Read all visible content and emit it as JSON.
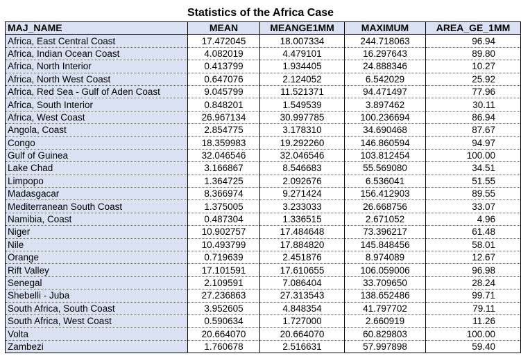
{
  "title": "Statistics of the Africa Case",
  "columns": [
    "MAJ_NAME",
    "MEAN",
    "MEANGE1MM",
    "MAXIMUM",
    "AREA_GE_1MM"
  ],
  "rows": [
    [
      "Africa, East Central Coast",
      "17.472045",
      "18.007334",
      "244.718063",
      "96.94"
    ],
    [
      "Africa, Indian Ocean Coast",
      "4.082019",
      "4.479101",
      "16.297643",
      "89.80"
    ],
    [
      "Africa, North Interior",
      "0.413799",
      "1.934405",
      "24.888346",
      "10.27"
    ],
    [
      "Africa, North West Coast",
      "0.647076",
      "2.124052",
      "6.542029",
      "25.92"
    ],
    [
      "Africa, Red Sea - Gulf of Aden Coast",
      "9.045799",
      "11.521371",
      "94.471497",
      "77.96"
    ],
    [
      "Africa, South Interior",
      "0.848201",
      "1.549539",
      "3.897462",
      "30.11"
    ],
    [
      "Africa, West Coast",
      "26.967134",
      "30.997785",
      "100.236694",
      "86.94"
    ],
    [
      "Angola, Coast",
      "2.854775",
      "3.178310",
      "34.690468",
      "87.67"
    ],
    [
      "Congo",
      "18.359983",
      "19.292260",
      "146.860594",
      "94.97"
    ],
    [
      "Gulf of Guinea",
      "32.046546",
      "32.046546",
      "103.812454",
      "100.00"
    ],
    [
      "Lake Chad",
      "3.166867",
      "8.546683",
      "55.569080",
      "34.51"
    ],
    [
      "Limpopo",
      "1.364725",
      "2.092676",
      "6.536041",
      "51.55"
    ],
    [
      "Madasgacar",
      "8.366974",
      "9.271424",
      "156.412903",
      "89.55"
    ],
    [
      "Mediterranean South Coast",
      "1.375005",
      "3.233033",
      "26.668756",
      "33.07"
    ],
    [
      "Namibia, Coast",
      "0.487304",
      "1.336515",
      "2.671052",
      "4.96"
    ],
    [
      "Niger",
      "10.902757",
      "17.484648",
      "73.396217",
      "61.48"
    ],
    [
      "Nile",
      "10.493799",
      "17.884820",
      "145.848456",
      "58.01"
    ],
    [
      "Orange",
      "0.719639",
      "2.451876",
      "8.974089",
      "12.67"
    ],
    [
      "Rift Valley",
      "17.101591",
      "17.610655",
      "106.059006",
      "96.98"
    ],
    [
      "Senegal",
      "2.109591",
      "7.086404",
      "33.709650",
      "28.24"
    ],
    [
      "Shebelli - Juba",
      "27.236863",
      "27.313543",
      "138.652486",
      "99.71"
    ],
    [
      "South Africa, South Coast",
      "3.952605",
      "4.848354",
      "41.797702",
      "79.11"
    ],
    [
      "South Africa, West Coast",
      "0.590634",
      "1.727000",
      "2.660919",
      "11.26"
    ],
    [
      "Volta",
      "20.664070",
      "20.664070",
      "60.829803",
      "100.00"
    ],
    [
      "Zambezi",
      "1.760678",
      "2.516631",
      "57.997898",
      "59.40"
    ]
  ]
}
